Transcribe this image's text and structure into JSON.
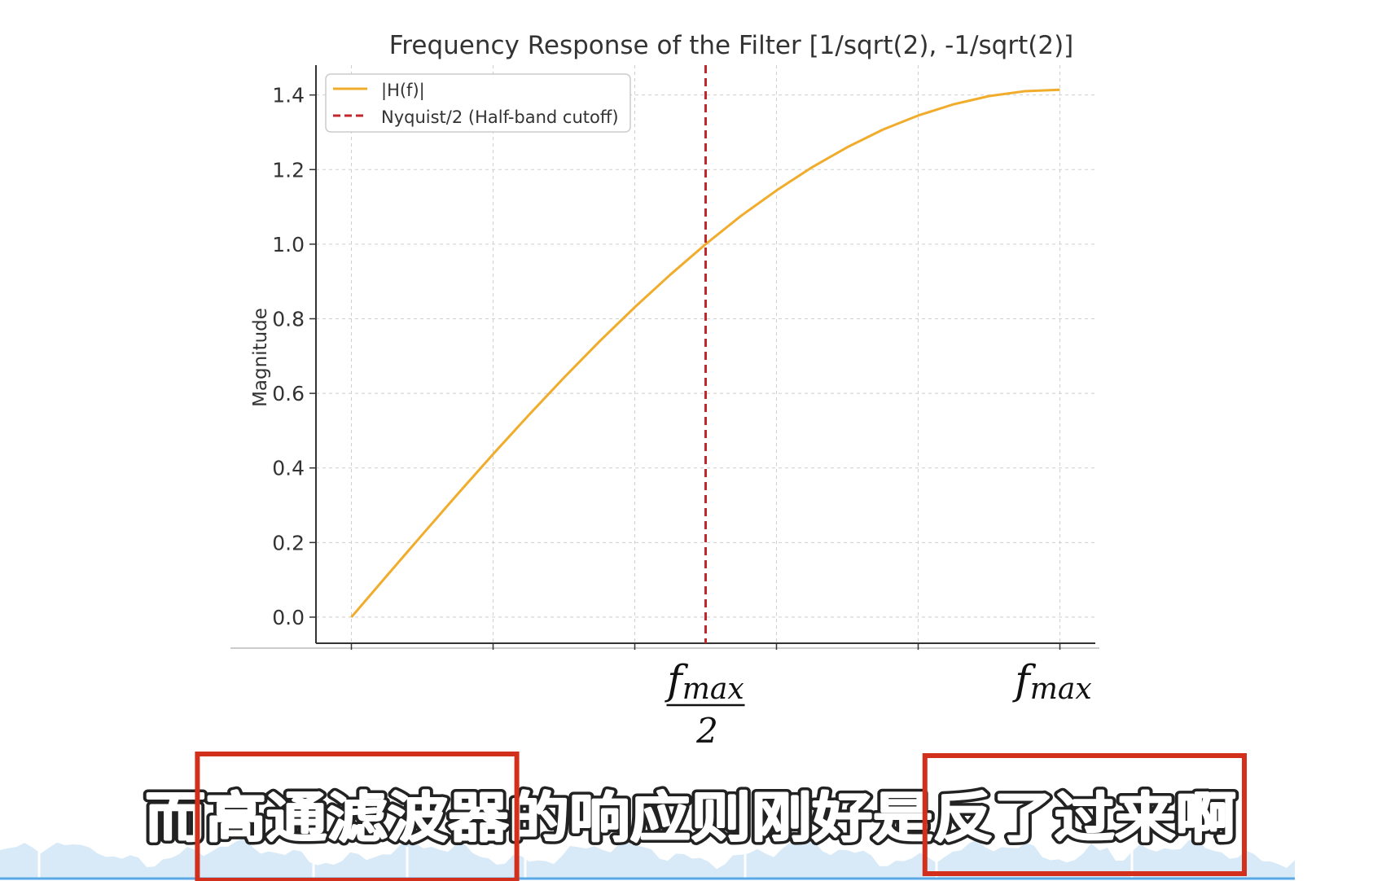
{
  "chart_data": {
    "type": "line",
    "title": "Frequency Response of the Filter [1/sqrt(2), -1/sqrt(2)]",
    "xlabel": "",
    "ylabel": "Magnitude",
    "xlim": [
      -0.05,
      1.05
    ],
    "ylim": [
      -0.07,
      1.48
    ],
    "yticks": [
      0.0,
      0.2,
      0.4,
      0.6,
      0.8,
      1.0,
      1.2,
      1.4
    ],
    "ytick_labels": [
      "0.0",
      "0.2",
      "0.4",
      "0.6",
      "0.8",
      "1.0",
      "1.2",
      "1.4"
    ],
    "xticks": [
      0.0,
      0.2,
      0.4,
      0.6,
      0.8,
      1.0
    ],
    "x_annotations": [
      {
        "x": 0.5,
        "numerator": "f",
        "subscript": "max",
        "denominator": "2"
      },
      {
        "x": 1.0,
        "numerator": "f",
        "subscript": "max",
        "denominator": ""
      }
    ],
    "grid": true,
    "legend_position": "top-left",
    "series": [
      {
        "name": "|H(f)|",
        "color": "#f0ac2a",
        "style": "solid",
        "x": [
          0.0,
          0.05,
          0.1,
          0.15,
          0.2,
          0.25,
          0.3,
          0.35,
          0.4,
          0.45,
          0.5,
          0.55,
          0.6,
          0.65,
          0.7,
          0.75,
          0.8,
          0.85,
          0.9,
          0.95,
          1.0
        ],
        "values": [
          0.0,
          0.111,
          0.221,
          0.33,
          0.437,
          0.541,
          0.642,
          0.739,
          0.831,
          0.918,
          1.0,
          1.076,
          1.144,
          1.206,
          1.26,
          1.307,
          1.345,
          1.375,
          1.397,
          1.41,
          1.414
        ]
      },
      {
        "name": "Nyquist/2 (Half-band cutoff)",
        "color": "#c3272b",
        "style": "dashed",
        "type": "vline",
        "x_value": 0.5
      }
    ]
  },
  "subtitle": {
    "text": "而高通滤波器的响应则刚好是反了过来啊",
    "highlight_color": "#d22f1c",
    "highlights": [
      {
        "text": "高通滤波器"
      },
      {
        "text": "反了过来啊"
      }
    ]
  },
  "waveform": {
    "color": "#d8eaf7",
    "line_color": "#5aa9e6"
  }
}
